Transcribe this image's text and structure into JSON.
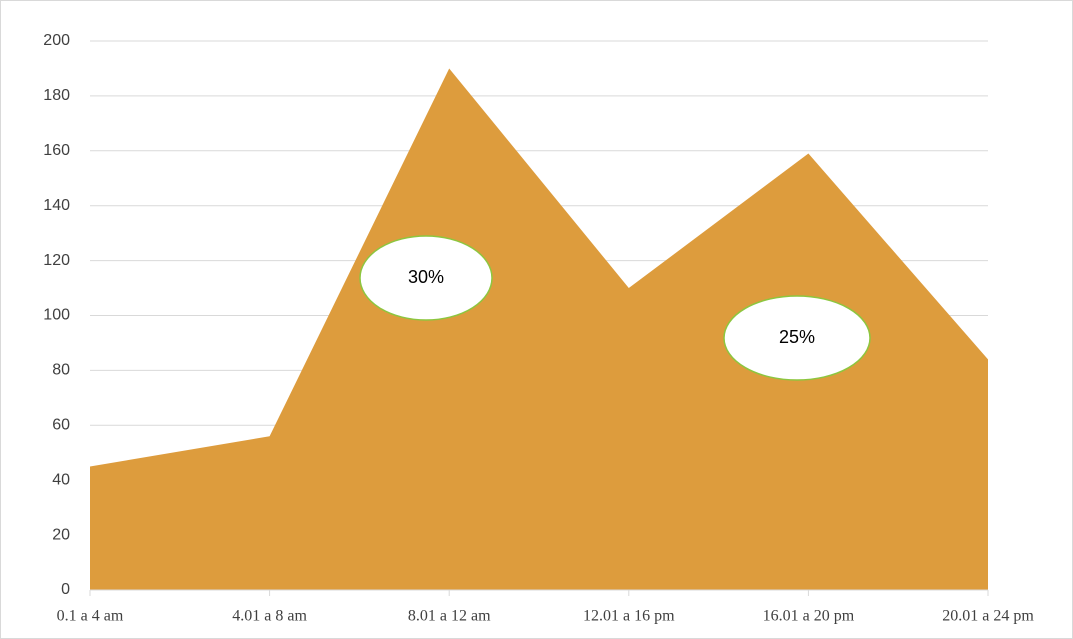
{
  "chart_data": {
    "type": "area",
    "categories": [
      "0.1 a 4 am",
      "4.01 a 8 am",
      "8.01 a 12 am",
      "12.01 a 16 pm",
      "16.01 a 20 pm",
      "20.01 a 24 pm"
    ],
    "values": [
      45,
      56,
      190,
      110,
      159,
      84
    ],
    "color": "#dd9c3d",
    "ylim": [
      0,
      200
    ],
    "yticks": [
      0,
      20,
      40,
      60,
      80,
      100,
      120,
      140,
      160,
      180,
      200
    ],
    "grid": true,
    "annotations": [
      "30%",
      "25%"
    ]
  }
}
